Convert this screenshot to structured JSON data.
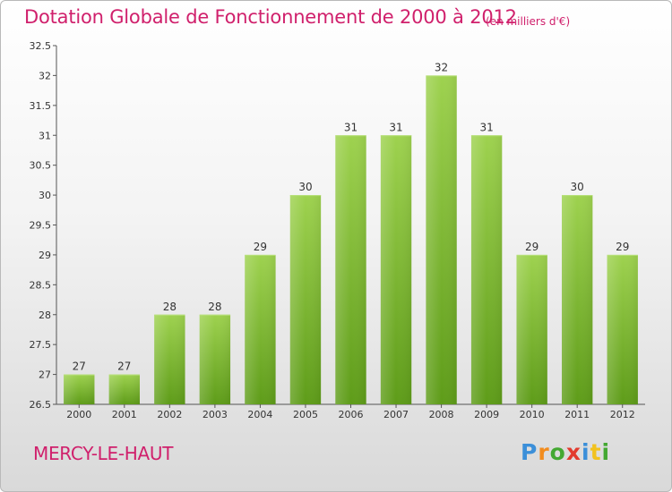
{
  "title": "Dotation Globale de Fonctionnement de 2000 à 2012",
  "subtitle": "(en milliers d'€)",
  "city": "MERCY-LE-HAUT",
  "logo": {
    "letters": [
      "P",
      "r",
      "o",
      "x",
      "i",
      "t",
      "i"
    ],
    "colors": [
      "#3b8fd9",
      "#f28c1e",
      "#43a832",
      "#e23b2e",
      "#3b8fd9",
      "#f2c21e",
      "#43a832"
    ]
  },
  "chart_data": {
    "type": "bar",
    "title": "Dotation Globale de Fonctionnement de 2000 à 2012",
    "subtitle": "(en milliers d'€)",
    "categories": [
      "2000",
      "2001",
      "2002",
      "2003",
      "2004",
      "2005",
      "2006",
      "2007",
      "2008",
      "2009",
      "2010",
      "2011",
      "2012"
    ],
    "values": [
      27,
      27,
      28,
      28,
      29,
      30,
      31,
      31,
      32,
      31,
      29,
      30,
      29
    ],
    "ylim": [
      26.5,
      32.5
    ],
    "yticks": [
      26.5,
      27,
      27.5,
      28,
      28.5,
      29,
      29.5,
      30,
      30.5,
      31,
      31.5,
      32,
      32.5
    ],
    "ytick_labels": [
      "26.5",
      "27",
      "27.5",
      "28",
      "28.5",
      "29",
      "29.5",
      "30",
      "30.5",
      "31",
      "31.5",
      "32",
      "32.5"
    ],
    "grid": false,
    "bar_color": "#7cc232",
    "bar_color_dark": "#5c9a18",
    "xlabel": "",
    "ylabel": ""
  }
}
